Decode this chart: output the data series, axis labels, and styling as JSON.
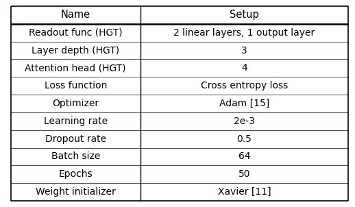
{
  "col_headers": [
    "Name",
    "Setup"
  ],
  "rows": [
    [
      "Readout func (HGT)",
      "2 linear layers, 1 output layer"
    ],
    [
      "Layer depth (HGT)",
      "3"
    ],
    [
      "Attention head (HGT)",
      "4"
    ],
    [
      "Loss function",
      "Cross entropy loss"
    ],
    [
      "Optimizer",
      "Adam [15]"
    ],
    [
      "Learning rate",
      "2e-3"
    ],
    [
      "Dropout rate",
      "0.5"
    ],
    [
      "Batch size",
      "64"
    ],
    [
      "Epochs",
      "50"
    ],
    [
      "Weight initializer",
      "Xavier [11]"
    ]
  ],
  "col_split": 0.385,
  "header_fontsize": 10.5,
  "row_fontsize": 10.0,
  "bg_color": "#ffffff",
  "text_color": "#000000",
  "line_color": "#000000",
  "outer_border_lw": 1.2,
  "inner_header_lw": 1.8,
  "col_divider_lw": 1.0,
  "row_lw": 0.5,
  "figsize": [
    5.18,
    3.02
  ],
  "dpi": 100
}
